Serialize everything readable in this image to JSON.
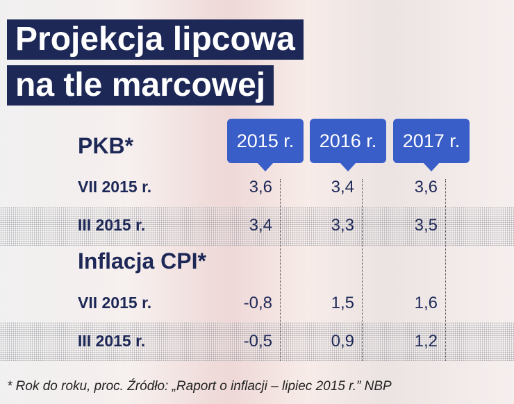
{
  "title": [
    "Projekcja lipcowa",
    "na tle marcowej"
  ],
  "columns": [
    "2015 r.",
    "2016 r.",
    "2017 r."
  ],
  "sections": [
    {
      "title": "PKB*",
      "rows": [
        {
          "label": "VII 2015 r.",
          "values": [
            "3,6",
            "3,4",
            "3,6"
          ]
        },
        {
          "label": "III 2015 r.",
          "values": [
            "3,4",
            "3,3",
            "3,5"
          ]
        }
      ]
    },
    {
      "title": "Inflacja CPI*",
      "rows": [
        {
          "label": "VII 2015 r.",
          "values": [
            "-0,8",
            "1,5",
            "1,6"
          ]
        },
        {
          "label": "III 2015 r.",
          "values": [
            "-0,5",
            "0,9",
            "1,2"
          ]
        }
      ]
    }
  ],
  "footnote": "* Rok do roku, proc. Źródło: „Raport o inflacji – lipiec 2015 r.” NBP"
}
